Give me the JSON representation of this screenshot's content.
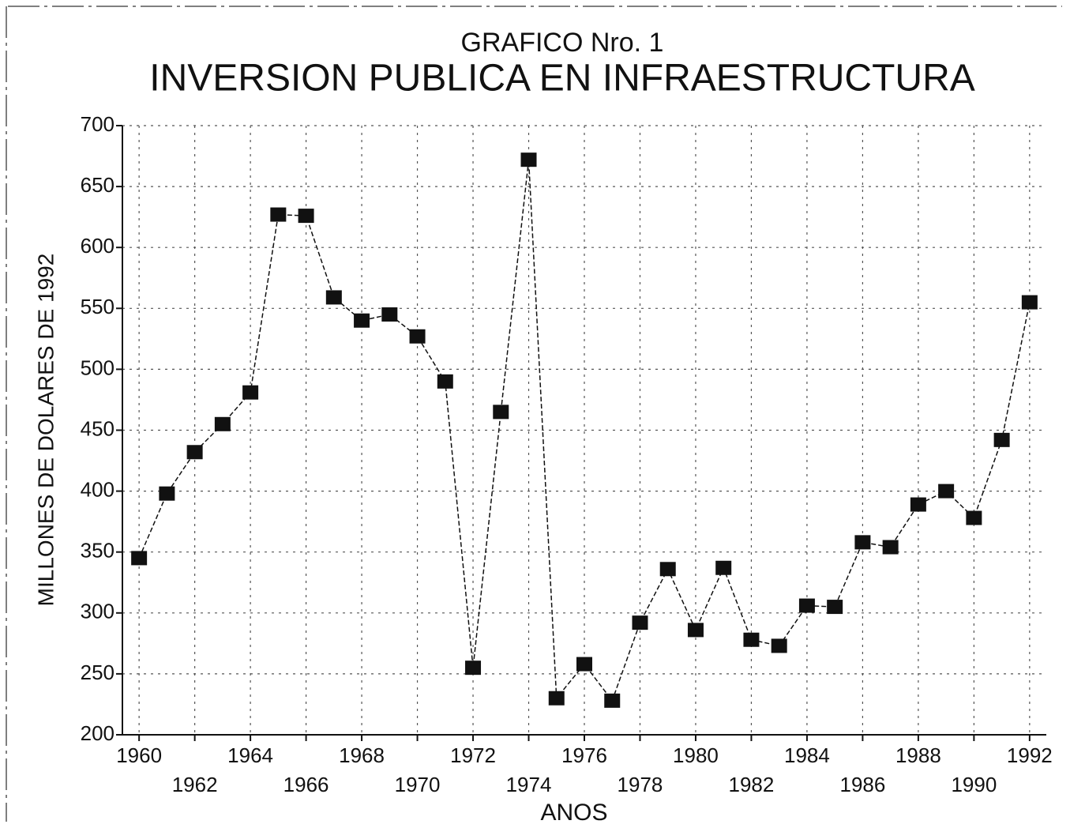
{
  "chart_data": {
    "type": "line",
    "title": "GRAFICO Nro. 1",
    "subtitle": "INVERSION PUBLICA EN INFRAESTRUCTURA",
    "x_label": "ANOS",
    "y_label": "MILLONES DE DOLARES DE 1992",
    "x": [
      1960,
      1961,
      1962,
      1963,
      1964,
      1965,
      1966,
      1967,
      1968,
      1969,
      1970,
      1971,
      1972,
      1973,
      1974,
      1975,
      1976,
      1977,
      1978,
      1979,
      1980,
      1981,
      1982,
      1983,
      1984,
      1985,
      1986,
      1987,
      1988,
      1989,
      1990,
      1991,
      1992
    ],
    "series": [
      {
        "name": "INVERSION PUBLICA EN INFRAESTRUCTURA",
        "color": "#111111",
        "values": [
          345,
          398,
          432,
          455,
          481,
          627,
          626,
          559,
          540,
          545,
          527,
          490,
          255,
          465,
          672,
          230,
          258,
          228,
          292,
          336,
          286,
          337,
          278,
          273,
          306,
          305,
          358,
          354,
          389,
          400,
          378,
          442,
          555
        ]
      }
    ],
    "xlim": [
      1959.4,
      1992.6
    ],
    "xticks": [
      1960,
      1962,
      1964,
      1966,
      1968,
      1970,
      1972,
      1974,
      1976,
      1978,
      1980,
      1982,
      1984,
      1986,
      1988,
      1990,
      1992
    ],
    "ylim": [
      200,
      700
    ],
    "yticks": [
      200,
      250,
      300,
      350,
      400,
      450,
      500,
      550,
      600,
      650,
      700
    ],
    "grid": true
  }
}
